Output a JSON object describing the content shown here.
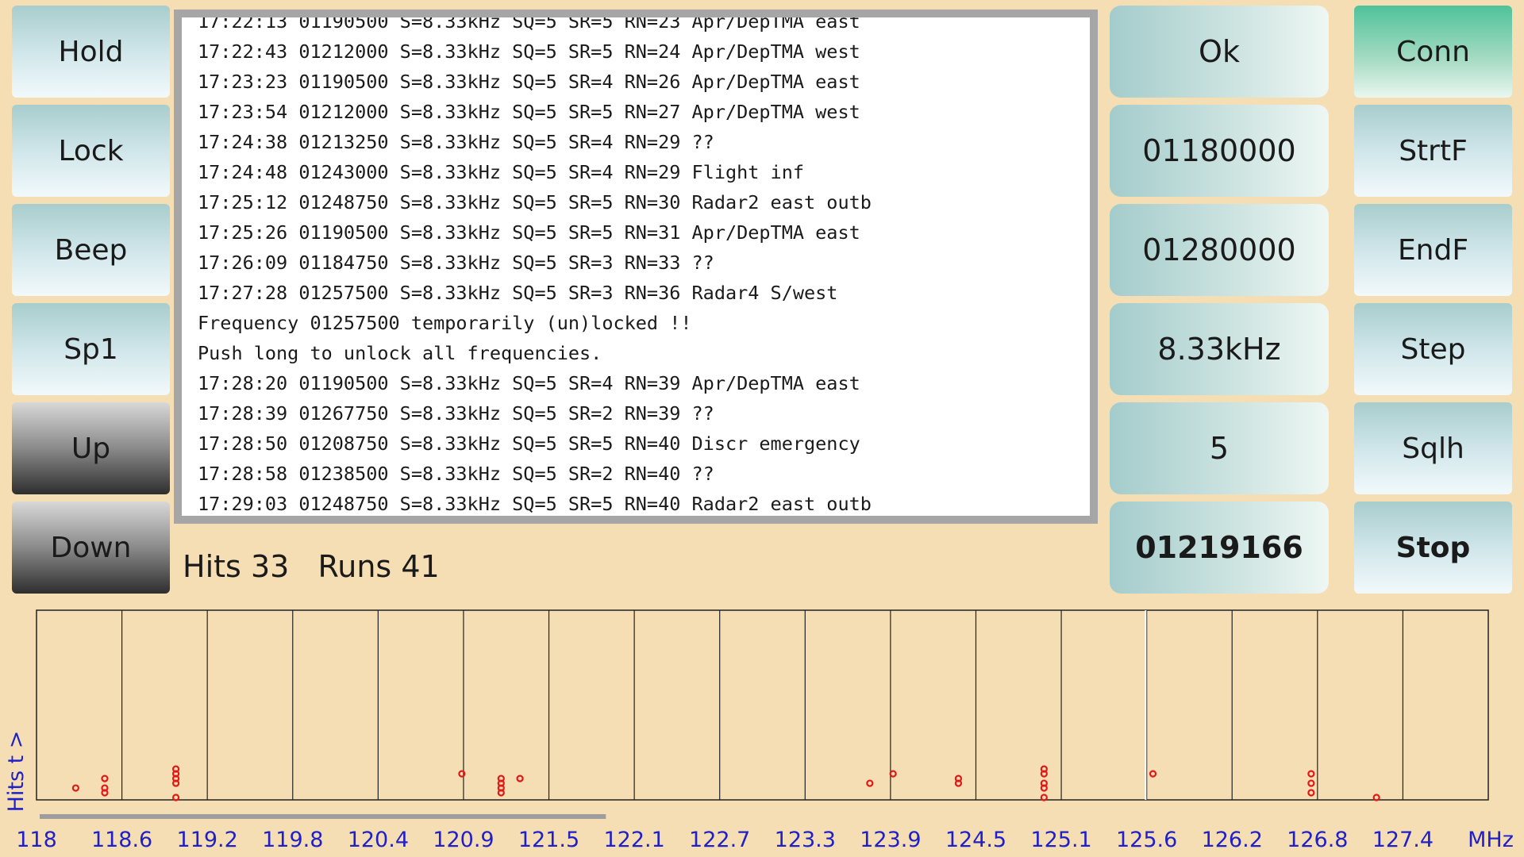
{
  "left_buttons": [
    {
      "label": "Hold",
      "style": "light"
    },
    {
      "label": "Lock",
      "style": "light"
    },
    {
      "label": "Beep",
      "style": "light"
    },
    {
      "label": "Sp1",
      "style": "light"
    },
    {
      "label": "Up",
      "style": "dark"
    },
    {
      "label": "Down",
      "style": "dark"
    }
  ],
  "log": {
    "partial_first_line": "17:22:13 01190500 S=8.33kHz SQ=5 SR=5 RN=23 Apr/DepTMA east",
    "lines": [
      "17:22:43 01212000 S=8.33kHz SQ=5 SR=5 RN=24 Apr/DepTMA west",
      "17:23:23 01190500 S=8.33kHz SQ=5 SR=4 RN=26 Apr/DepTMA east",
      "17:23:54 01212000 S=8.33kHz SQ=5 SR=5 RN=27 Apr/DepTMA west",
      "17:24:38 01213250 S=8.33kHz SQ=5 SR=4 RN=29 ??",
      "17:24:48 01243000 S=8.33kHz SQ=5 SR=4 RN=29 Flight inf",
      "17:25:12 01248750 S=8.33kHz SQ=5 SR=5 RN=30 Radar2 east outb",
      "17:25:26 01190500 S=8.33kHz SQ=5 SR=5 RN=31 Apr/DepTMA east",
      "17:26:09 01184750 S=8.33kHz SQ=5 SR=3 RN=33 ??",
      "17:27:28 01257500 S=8.33kHz SQ=5 SR=3 RN=36 Radar4 S/west",
      "Frequency 01257500 temporarily (un)locked !!",
      "Push long to unlock all frequencies.",
      "17:28:20 01190500 S=8.33kHz SQ=5 SR=4 RN=39 Apr/DepTMA east",
      "17:28:39 01267750 S=8.33kHz SQ=5 SR=2 RN=39 ??",
      "17:28:50 01208750 S=8.33kHz SQ=5 SR=5 RN=40 Discr emergency",
      "17:28:58 01238500 S=8.33kHz SQ=5 SR=2 RN=40 ??",
      "17:29:03 01248750 S=8.33kHz SQ=5 SR=5 RN=40 Radar2 east outb"
    ]
  },
  "value_buttons": [
    {
      "label": "Ok",
      "bold": false
    },
    {
      "label": "01180000",
      "bold": false
    },
    {
      "label": "01280000",
      "bold": false
    },
    {
      "label": "8.33kHz",
      "bold": false
    },
    {
      "label": "5",
      "bold": false
    },
    {
      "label": "01219166",
      "bold": true
    }
  ],
  "right_buttons": [
    {
      "label": "Conn",
      "style": "green",
      "bold": false
    },
    {
      "label": "StrtF",
      "style": "light",
      "bold": false
    },
    {
      "label": "EndF",
      "style": "light",
      "bold": false
    },
    {
      "label": "Step",
      "style": "light",
      "bold": false
    },
    {
      "label": "Sqlh",
      "style": "light",
      "bold": false
    },
    {
      "label": "Stop",
      "style": "light",
      "bold": true
    }
  ],
  "stats": {
    "hits_label": "Hits",
    "hits": "33",
    "runs_label": "Runs",
    "runs": "41"
  },
  "chart_data": {
    "type": "scatter",
    "xlabel": "MHz",
    "ylabel": "Hits  t >",
    "x_tick_labels": [
      "118",
      "118.6",
      "119.2",
      "119.8",
      "120.4",
      "120.9",
      "121.5",
      "122.1",
      "122.7",
      "123.3",
      "123.9",
      "124.5",
      "125.1",
      "125.6",
      "126.2",
      "126.8",
      "127.4"
    ],
    "xlim": [
      118.0,
      128.0
    ],
    "ylim": [
      0,
      40
    ],
    "current_frequency_mhz": 125.64,
    "scan_progress": 0.39,
    "point_color": "#e01818",
    "points": [
      {
        "x": 118.27,
        "y": 2
      },
      {
        "x": 118.47,
        "y": 1
      },
      {
        "x": 118.47,
        "y": 2
      },
      {
        "x": 118.47,
        "y": 4
      },
      {
        "x": 118.96,
        "y": 0
      },
      {
        "x": 118.96,
        "y": 3
      },
      {
        "x": 118.96,
        "y": 4
      },
      {
        "x": 118.96,
        "y": 5
      },
      {
        "x": 118.96,
        "y": 6
      },
      {
        "x": 120.93,
        "y": 5
      },
      {
        "x": 121.2,
        "y": 1
      },
      {
        "x": 121.2,
        "y": 2
      },
      {
        "x": 121.2,
        "y": 3
      },
      {
        "x": 121.2,
        "y": 4
      },
      {
        "x": 121.33,
        "y": 4
      },
      {
        "x": 123.74,
        "y": 3
      },
      {
        "x": 123.9,
        "y": 5
      },
      {
        "x": 124.35,
        "y": 3
      },
      {
        "x": 124.35,
        "y": 4
      },
      {
        "x": 124.94,
        "y": 0
      },
      {
        "x": 124.94,
        "y": 2
      },
      {
        "x": 124.94,
        "y": 3
      },
      {
        "x": 124.94,
        "y": 5
      },
      {
        "x": 124.94,
        "y": 6
      },
      {
        "x": 125.69,
        "y": 5
      },
      {
        "x": 126.78,
        "y": 1
      },
      {
        "x": 126.78,
        "y": 3
      },
      {
        "x": 126.78,
        "y": 5
      },
      {
        "x": 127.23,
        "y": 0
      }
    ]
  }
}
